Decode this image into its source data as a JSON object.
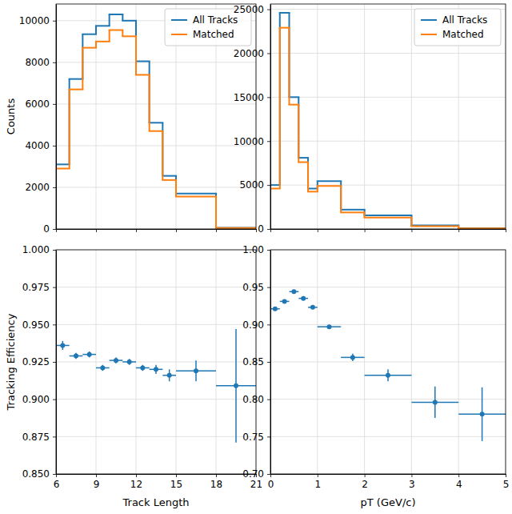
{
  "chart_data": [
    {
      "type": "histogram",
      "bins": [
        6,
        7,
        8,
        9,
        10,
        11,
        12,
        13,
        14,
        15,
        18,
        21
      ],
      "series": [
        {
          "name": "All Tracks",
          "color": "#1f77b4",
          "values": [
            3100,
            7200,
            9350,
            9750,
            10300,
            10000,
            8050,
            5100,
            2550,
            1700,
            55
          ]
        },
        {
          "name": "Matched",
          "color": "#ff7f0e",
          "values": [
            2900,
            6700,
            8700,
            9000,
            9550,
            9250,
            7400,
            4700,
            2350,
            1560,
            50
          ]
        }
      ],
      "ylabel": "Counts",
      "xlim": [
        6,
        21
      ],
      "xticks": [
        6,
        9,
        12,
        15,
        18,
        21
      ],
      "ylim": [
        0,
        10800
      ],
      "yticks": [
        0,
        2000,
        4000,
        6000,
        8000,
        10000
      ],
      "grid": true,
      "legend": "upper right",
      "tick_labels": "y"
    },
    {
      "type": "histogram",
      "bins": [
        0,
        0.2,
        0.4,
        0.6,
        0.8,
        1,
        1.5,
        2,
        3,
        4,
        5
      ],
      "series": [
        {
          "name": "All Tracks",
          "color": "#1f77b4",
          "values": [
            5000,
            24600,
            15000,
            8100,
            4600,
            5450,
            2200,
            1550,
            400,
            100
          ]
        },
        {
          "name": "Matched",
          "color": "#ff7f0e",
          "values": [
            4600,
            22900,
            14150,
            7600,
            4250,
            4900,
            1880,
            1290,
            320,
            78
          ]
        }
      ],
      "xlim": [
        0,
        5
      ],
      "xticks": [
        0,
        1,
        2,
        3,
        4,
        5
      ],
      "ylim": [
        0,
        25600
      ],
      "yticks": [
        0,
        5000,
        10000,
        15000,
        20000,
        25000
      ],
      "grid": true,
      "legend": "upper right",
      "tick_labels": "y"
    },
    {
      "type": "errorbar",
      "x": [
        6.5,
        7.5,
        8.5,
        9.5,
        10.5,
        11.5,
        12.5,
        13.5,
        14.5,
        16.5,
        19.5
      ],
      "x_errors": [
        0.5,
        0.5,
        0.5,
        0.5,
        0.5,
        0.5,
        0.5,
        0.5,
        0.5,
        1.5,
        1.5
      ],
      "values": [
        0.936,
        0.929,
        0.93,
        0.921,
        0.926,
        0.925,
        0.921,
        0.92,
        0.916,
        0.919,
        0.909
      ],
      "errors": [
        0.003,
        0.002,
        0.002,
        0.002,
        0.002,
        0.002,
        0.002,
        0.003,
        0.004,
        0.007,
        0.038
      ],
      "color": "#1f77b4",
      "marker": "circle",
      "xlabel": "Track Length",
      "ylabel": "Tracking Efficiency",
      "xlim": [
        6,
        21
      ],
      "xticks": [
        6,
        9,
        12,
        15,
        18,
        21
      ],
      "ylim": [
        0.85,
        1.0
      ],
      "yticks": [
        {
          "value": 0.85,
          "label": "0.850"
        },
        {
          "value": 0.875,
          "label": "0.875"
        },
        {
          "value": 0.9,
          "label": "0.900"
        },
        {
          "value": 0.925,
          "label": "0.925"
        },
        {
          "value": 0.95,
          "label": "0.950"
        },
        {
          "value": 0.975,
          "label": "0.975"
        },
        {
          "value": 1.0,
          "label": "1.000"
        }
      ],
      "grid": true
    },
    {
      "type": "errorbar",
      "x": [
        0.1,
        0.3,
        0.5,
        0.7,
        0.9,
        1.25,
        1.75,
        2.5,
        3.5,
        4.5
      ],
      "x_errors": [
        0.1,
        0.1,
        0.1,
        0.1,
        0.1,
        0.25,
        0.25,
        0.5,
        0.5,
        0.5
      ],
      "values": [
        0.921,
        0.931,
        0.944,
        0.935,
        0.923,
        0.897,
        0.856,
        0.832,
        0.796,
        0.78
      ],
      "errors": [
        0.002,
        0.002,
        0.002,
        0.002,
        0.002,
        0.002,
        0.005,
        0.008,
        0.021,
        0.036
      ],
      "color": "#1f77b4",
      "marker": "circle",
      "xlabel": "pT (GeV/c)",
      "xlim": [
        0,
        5
      ],
      "xticks": [
        0,
        1,
        2,
        3,
        4,
        5
      ],
      "ylim": [
        0.7,
        1.0
      ],
      "yticks": [
        {
          "value": 0.7,
          "label": "0.70"
        },
        {
          "value": 0.75,
          "label": "0.75"
        },
        {
          "value": 0.8,
          "label": "0.80"
        },
        {
          "value": 0.85,
          "label": "0.85"
        },
        {
          "value": 0.9,
          "label": "0.90"
        },
        {
          "value": 0.95,
          "label": "0.95"
        },
        {
          "value": 1.0,
          "label": "1.00"
        }
      ],
      "grid": true
    }
  ]
}
